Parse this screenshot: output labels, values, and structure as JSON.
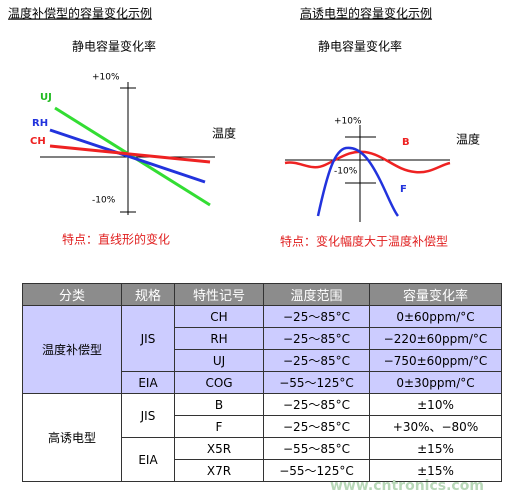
{
  "left": {
    "title": "温度补偿型的容量变化示例",
    "subtitle": "静电容量变化率",
    "y_top": "+10%",
    "y_bottom": "-10%",
    "x_axis": "温度",
    "series_labels": [
      "UJ",
      "RH",
      "CH"
    ],
    "caption": "特点：直线形的变化"
  },
  "right": {
    "title": "高诱电型的容量变化示例",
    "subtitle": "静电容量变化率",
    "y_top": "+10%",
    "y_bottom": "-10%",
    "x_axis": "温度",
    "series_labels": [
      "B",
      "F"
    ],
    "caption": "特点：变化幅度大于温度补偿型"
  },
  "table": {
    "header": [
      "分类",
      "规格",
      "特性记号",
      "温度范围",
      "容量变化率"
    ],
    "rows": [
      [
        "温度补偿型",
        "JIS",
        "CH",
        "−25～85°C",
        "0±60ppm/°C"
      ],
      [
        "RH",
        "−25～85°C",
        "−220±60ppm/°C"
      ],
      [
        "UJ",
        "−25～85°C",
        "−750±60ppm/°C"
      ],
      [
        "EIA",
        "COG",
        "−55～125°C",
        "0±30ppm/°C"
      ],
      [
        "高诱电型",
        "JIS",
        "B",
        "−25～85°C",
        "±10%"
      ],
      [
        "F",
        "−25～85°C",
        "+30%、−80%"
      ],
      [
        "EIA",
        "X5R",
        "−55～85°C",
        "±15%"
      ],
      [
        "X7R",
        "−55～125°C",
        "±15%"
      ]
    ]
  },
  "watermark": "www.cntronics.com"
}
